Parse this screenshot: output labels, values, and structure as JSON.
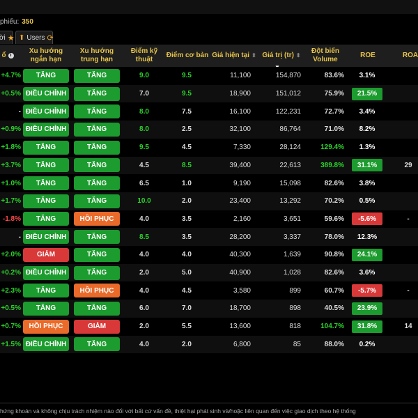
{
  "header": {
    "count_label": "phiếu:",
    "count_value": "350"
  },
  "tabs": [
    {
      "label": "ời"
    },
    {
      "label": "Users"
    }
  ],
  "columns": {
    "change": "ổ",
    "short_trend": "Xu hướng ngắn hạn",
    "mid_trend": "Xu hướng trung hạn",
    "tech_score": "Điểm kỹ thuật",
    "fund_score": "Điểm cơ bản",
    "price": "Giá hiện tại",
    "value": "Giá trị (tr)",
    "volume_spike": "Đột biến Volume",
    "roe": "ROE",
    "roa": "ROA"
  },
  "colors": {
    "accent": "#e6c34a",
    "green": "#1c9b2e",
    "red": "#d93838",
    "orange": "#ea6a2a"
  },
  "rows": [
    {
      "chg": "+4.7%",
      "short": "TĂNG",
      "mid": "TĂNG",
      "tech": "9.0",
      "fund": "9.5",
      "price": "11,100",
      "value": "154,870",
      "vol": "83.6%",
      "roe": "3.1%",
      "roa": ""
    },
    {
      "chg": "+0.5%",
      "short": "ĐIỀU CHỈNH",
      "mid": "TĂNG",
      "tech": "7.0",
      "fund": "9.5",
      "price": "18,900",
      "value": "151,012",
      "vol": "75.9%",
      "roe": "21.5%",
      "roa": ""
    },
    {
      "chg": "-",
      "short": "ĐIỀU CHỈNH",
      "mid": "TĂNG",
      "tech": "8.0",
      "fund": "7.5",
      "price": "16,100",
      "value": "122,231",
      "vol": "72.7%",
      "roe": "3.4%",
      "roa": ""
    },
    {
      "chg": "+0.9%",
      "short": "ĐIỀU CHỈNH",
      "mid": "TĂNG",
      "tech": "8.0",
      "fund": "2.5",
      "price": "32,100",
      "value": "86,764",
      "vol": "71.0%",
      "roe": "8.2%",
      "roa": ""
    },
    {
      "chg": "+1.8%",
      "short": "TĂNG",
      "mid": "TĂNG",
      "tech": "9.5",
      "fund": "4.5",
      "price": "7,330",
      "value": "28,124",
      "vol": "129.4%",
      "roe": "1.3%",
      "roa": ""
    },
    {
      "chg": "+3.7%",
      "short": "TĂNG",
      "mid": "TĂNG",
      "tech": "4.5",
      "fund": "8.5",
      "price": "39,400",
      "value": "22,613",
      "vol": "389.8%",
      "roe": "31.1%",
      "roa": "29"
    },
    {
      "chg": "+1.0%",
      "short": "TĂNG",
      "mid": "TĂNG",
      "tech": "6.5",
      "fund": "1.0",
      "price": "9,190",
      "value": "15,098",
      "vol": "82.6%",
      "roe": "3.8%",
      "roa": ""
    },
    {
      "chg": "+1.7%",
      "short": "TĂNG",
      "mid": "TĂNG",
      "tech": "10.0",
      "fund": "2.0",
      "price": "23,400",
      "value": "13,292",
      "vol": "70.2%",
      "roe": "0.5%",
      "roa": ""
    },
    {
      "chg": "-1.8%",
      "short": "TĂNG",
      "mid": "HỒI PHỤC",
      "tech": "4.0",
      "fund": "3.5",
      "price": "2,160",
      "value": "3,651",
      "vol": "59.6%",
      "roe": "-5.6%",
      "roa": "-"
    },
    {
      "chg": "-",
      "short": "ĐIỀU CHỈNH",
      "mid": "TĂNG",
      "tech": "8.5",
      "fund": "3.5",
      "price": "28,200",
      "value": "3,337",
      "vol": "78.0%",
      "roe": "12.3%",
      "roa": ""
    },
    {
      "chg": "+2.0%",
      "short": "GIẢM",
      "mid": "TĂNG",
      "tech": "4.0",
      "fund": "4.0",
      "price": "40,300",
      "value": "1,639",
      "vol": "90.8%",
      "roe": "24.1%",
      "roa": ""
    },
    {
      "chg": "+0.2%",
      "short": "ĐIỀU CHỈNH",
      "mid": "TĂNG",
      "tech": "2.0",
      "fund": "5.0",
      "price": "40,900",
      "value": "1,028",
      "vol": "82.6%",
      "roe": "3.6%",
      "roa": ""
    },
    {
      "chg": "+2.3%",
      "short": "TĂNG",
      "mid": "HỒI PHỤC",
      "tech": "4.0",
      "fund": "4.5",
      "price": "3,580",
      "value": "899",
      "vol": "60.7%",
      "roe": "-5.7%",
      "roa": "-"
    },
    {
      "chg": "+0.5%",
      "short": "TĂNG",
      "mid": "TĂNG",
      "tech": "6.0",
      "fund": "7.0",
      "price": "18,700",
      "value": "898",
      "vol": "40.5%",
      "roe": "23.9%",
      "roa": ""
    },
    {
      "chg": "+0.7%",
      "short": "HỒI PHỤC",
      "mid": "GIẢM",
      "tech": "2.0",
      "fund": "5.5",
      "price": "13,600",
      "value": "818",
      "vol": "104.7%",
      "roe": "31.8%",
      "roa": "14"
    },
    {
      "chg": "+1.5%",
      "short": "ĐIỀU CHỈNH",
      "mid": "TĂNG",
      "tech": "4.0",
      "fund": "2.0",
      "price": "6,800",
      "value": "85",
      "vol": "88.0%",
      "roe": "0.2%",
      "roa": ""
    }
  ],
  "disclaimer": "hứng khoán và không chịu trách nhiệm nào đối với bất cứ vấn đề, thiệt hại phát sinh và/hoặc liên quan đến việc giao dịch theo hệ thống"
}
